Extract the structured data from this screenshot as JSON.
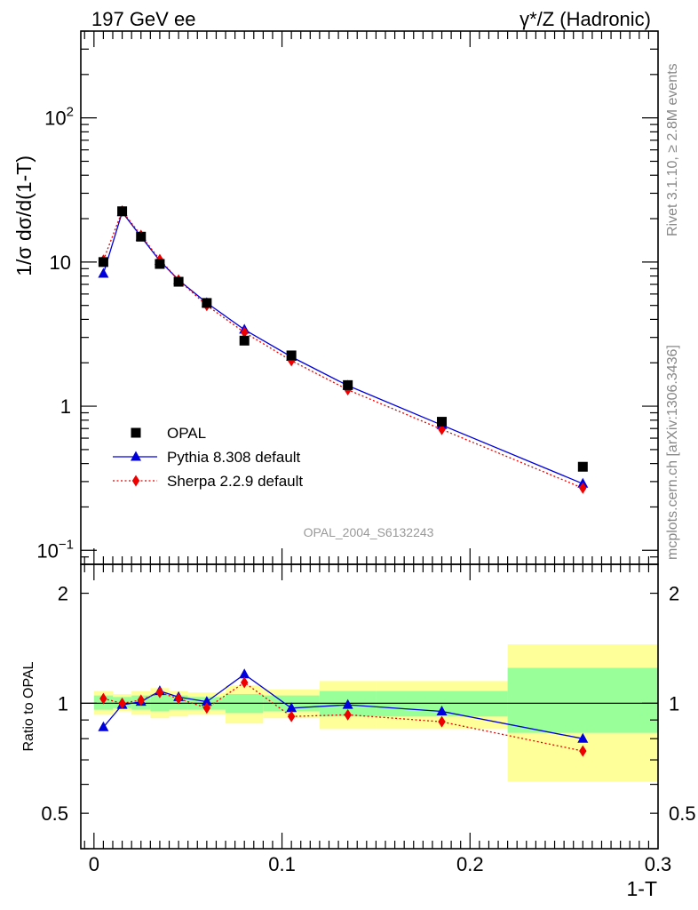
{
  "header": {
    "left_title": "197 GeV ee",
    "right_title": "γ*/Z (Hadronic)"
  },
  "side": {
    "rivet": "Rivet 3.1.10, ≥ 2.8M events",
    "mcplots": "mcplots.cern.ch [arXiv:1306.3436]"
  },
  "watermark": "OPAL_2004_S6132243",
  "chart_data": [
    {
      "type": "scatter",
      "panel": "main",
      "ylabel": "1/σ dσ/d(1-T)",
      "yscale": "log",
      "ylim": [
        0.08,
        400
      ],
      "xlim": [
        -0.007,
        0.3
      ],
      "yticks": [
        {
          "value": 0.1,
          "base": "10",
          "exp": "−1"
        },
        {
          "value": 1,
          "label": "1"
        },
        {
          "value": 10,
          "label": "10"
        },
        {
          "value": 100,
          "base": "10",
          "exp": "2"
        }
      ],
      "legend_position": "bottom-left",
      "series": [
        {
          "name": "OPAL",
          "color": "#000000",
          "marker": "square",
          "x": [
            0.005,
            0.015,
            0.025,
            0.035,
            0.045,
            0.06,
            0.08,
            0.105,
            0.135,
            0.185,
            0.26
          ],
          "y": [
            10.0,
            22.5,
            15.0,
            9.7,
            7.3,
            5.2,
            2.85,
            2.25,
            1.4,
            0.78,
            0.38
          ]
        },
        {
          "name": "Pythia 8.308 default",
          "color": "#0000dd",
          "marker": "triangle",
          "line": "solid",
          "x": [
            0.005,
            0.015,
            0.025,
            0.035,
            0.045,
            0.06,
            0.08,
            0.105,
            0.135,
            0.185,
            0.26
          ],
          "y": [
            8.3,
            22.2,
            15.0,
            10.2,
            7.5,
            5.2,
            3.4,
            2.2,
            1.39,
            0.74,
            0.29
          ]
        },
        {
          "name": "Sherpa 2.2.9 default",
          "color": "#ee0000",
          "marker": "diamond",
          "line": "dotted",
          "x": [
            0.005,
            0.015,
            0.025,
            0.035,
            0.045,
            0.06,
            0.08,
            0.105,
            0.135,
            0.185,
            0.26
          ],
          "y": [
            10.3,
            22.6,
            15.3,
            10.4,
            7.5,
            5.0,
            3.25,
            2.07,
            1.3,
            0.69,
            0.27
          ]
        }
      ]
    },
    {
      "type": "scatter",
      "panel": "ratio",
      "ylabel": "Ratio to OPAL",
      "xlabel": "1-T",
      "yscale": "log",
      "ylim": [
        0.4,
        2.4
      ],
      "xlim": [
        -0.007,
        0.3
      ],
      "xticks": [
        {
          "value": 0,
          "label": "0"
        },
        {
          "value": 0.1,
          "label": "0.1"
        },
        {
          "value": 0.2,
          "label": "0.2"
        },
        {
          "value": 0.3,
          "label": "0.3"
        }
      ],
      "yticks": [
        {
          "value": 0.5,
          "label": "0.5"
        },
        {
          "value": 1,
          "label": "1"
        },
        {
          "value": 2,
          "label": "2"
        }
      ],
      "bands": [
        {
          "x0": 0.0,
          "x1": 0.01,
          "inner": [
            0.96,
            1.05
          ],
          "outer": [
            0.93,
            1.08
          ]
        },
        {
          "x0": 0.01,
          "x1": 0.02,
          "inner": [
            0.97,
            1.04
          ],
          "outer": [
            0.95,
            1.06
          ]
        },
        {
          "x0": 0.02,
          "x1": 0.03,
          "inner": [
            0.96,
            1.05
          ],
          "outer": [
            0.93,
            1.08
          ]
        },
        {
          "x0": 0.03,
          "x1": 0.04,
          "inner": [
            0.95,
            1.06
          ],
          "outer": [
            0.91,
            1.1
          ]
        },
        {
          "x0": 0.04,
          "x1": 0.05,
          "inner": [
            0.96,
            1.05
          ],
          "outer": [
            0.92,
            1.08
          ]
        },
        {
          "x0": 0.05,
          "x1": 0.07,
          "inner": [
            0.96,
            1.04
          ],
          "outer": [
            0.93,
            1.07
          ]
        },
        {
          "x0": 0.07,
          "x1": 0.09,
          "inner": [
            0.94,
            1.06
          ],
          "outer": [
            0.88,
            1.12
          ]
        },
        {
          "x0": 0.09,
          "x1": 0.12,
          "inner": [
            0.95,
            1.05
          ],
          "outer": [
            0.91,
            1.09
          ]
        },
        {
          "x0": 0.12,
          "x1": 0.15,
          "inner": [
            0.92,
            1.08
          ],
          "outer": [
            0.85,
            1.15
          ]
        },
        {
          "x0": 0.15,
          "x1": 0.22,
          "inner": [
            0.92,
            1.08
          ],
          "outer": [
            0.85,
            1.15
          ]
        },
        {
          "x0": 0.22,
          "x1": 0.3,
          "inner": [
            0.83,
            1.25
          ],
          "outer": [
            0.61,
            1.45
          ]
        }
      ],
      "series": [
        {
          "name": "Pythia 8.308 default",
          "color": "#0000dd",
          "marker": "triangle",
          "line": "solid",
          "x": [
            0.005,
            0.015,
            0.025,
            0.035,
            0.045,
            0.06,
            0.08,
            0.105,
            0.135,
            0.185,
            0.26
          ],
          "y": [
            0.86,
            0.99,
            1.01,
            1.08,
            1.04,
            1.01,
            1.2,
            0.97,
            0.99,
            0.95,
            0.8
          ]
        },
        {
          "name": "Sherpa 2.2.9 default",
          "color": "#ee0000",
          "marker": "diamond",
          "line": "dotted",
          "x": [
            0.005,
            0.015,
            0.025,
            0.035,
            0.045,
            0.06,
            0.08,
            0.105,
            0.135,
            0.185,
            0.26
          ],
          "y": [
            1.03,
            1.0,
            1.02,
            1.07,
            1.03,
            0.97,
            1.14,
            0.92,
            0.93,
            0.89,
            0.74
          ]
        }
      ]
    }
  ]
}
